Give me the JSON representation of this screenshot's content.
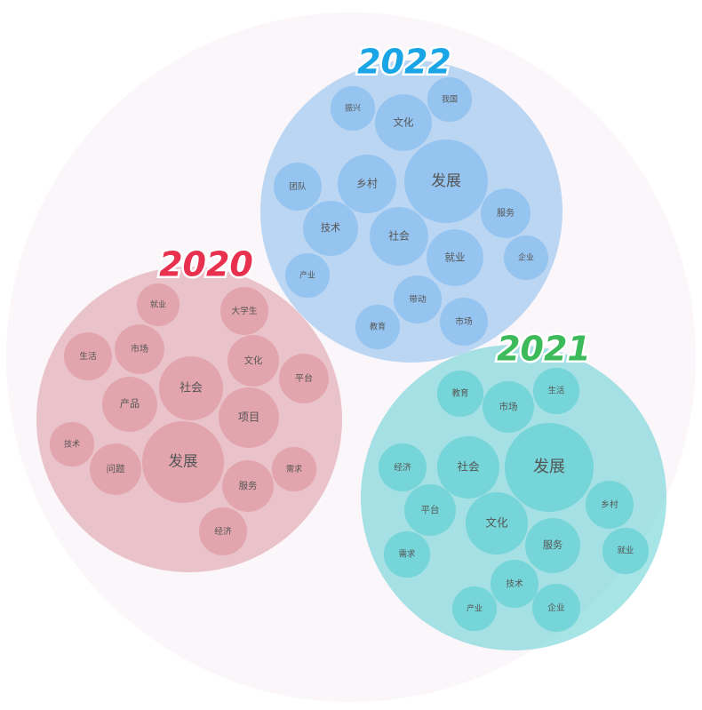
{
  "chart_data": [
    {
      "type": "bubble",
      "title": "2022",
      "title_color": "#1aa6e6",
      "color": "#8fc1ee",
      "categories": [
        "振兴",
        "文化",
        "我国",
        "团队",
        "乡村",
        "发展",
        "服务",
        "技术",
        "社会",
        "就业",
        "企业",
        "产业",
        "带动",
        "教育",
        "市场"
      ],
      "values": [
        63,
        102,
        63,
        73,
        109,
        221,
        78,
        96,
        109,
        102,
        63,
        63,
        73,
        63,
        73
      ]
    },
    {
      "type": "bubble",
      "title": "2020",
      "title_color": "#e8314f",
      "color": "#e0a0a8",
      "categories": [
        "就业",
        "大学生",
        "市场",
        "生活",
        "文化",
        "社会",
        "平台",
        "产品",
        "项目",
        "技术",
        "发展",
        "问题",
        "需求",
        "服务",
        "经济"
      ],
      "values": [
        58,
        73,
        78,
        73,
        84,
        130,
        78,
        96,
        116,
        63,
        212,
        84,
        63,
        84,
        73
      ]
    },
    {
      "type": "bubble",
      "title": "2021",
      "title_color": "#3dba5a",
      "color": "#6dd2d6",
      "categories": [
        "教育",
        "生活",
        "市场",
        "社会",
        "发展",
        "经济",
        "乡村",
        "平台",
        "文化",
        "服务",
        "就业",
        "需求",
        "技术",
        "产业",
        "企业"
      ],
      "values": [
        68,
        68,
        84,
        123,
        250,
        73,
        73,
        84,
        123,
        96,
        68,
        68,
        73,
        63,
        73
      ]
    }
  ]
}
